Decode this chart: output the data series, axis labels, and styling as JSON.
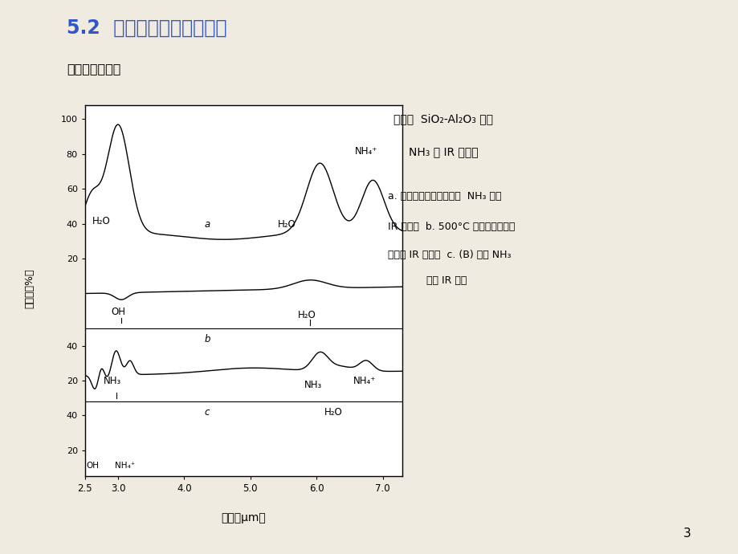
{
  "title": "5.2  酸中心的类型及其鉴定",
  "subtitle": "硅铝胶的酸中心",
  "bg_color": "#f0ebe0",
  "plot_bg": "#ffffff",
  "title_color": "#3355cc",
  "xlabel": "波长（μm）",
  "ylabel": "透过率（%）",
  "xlim": [
    2.5,
    7.3
  ],
  "xticks": [
    2.5,
    3.0,
    4.0,
    5.0,
    6.0,
    7.0
  ],
  "page_num": "3"
}
